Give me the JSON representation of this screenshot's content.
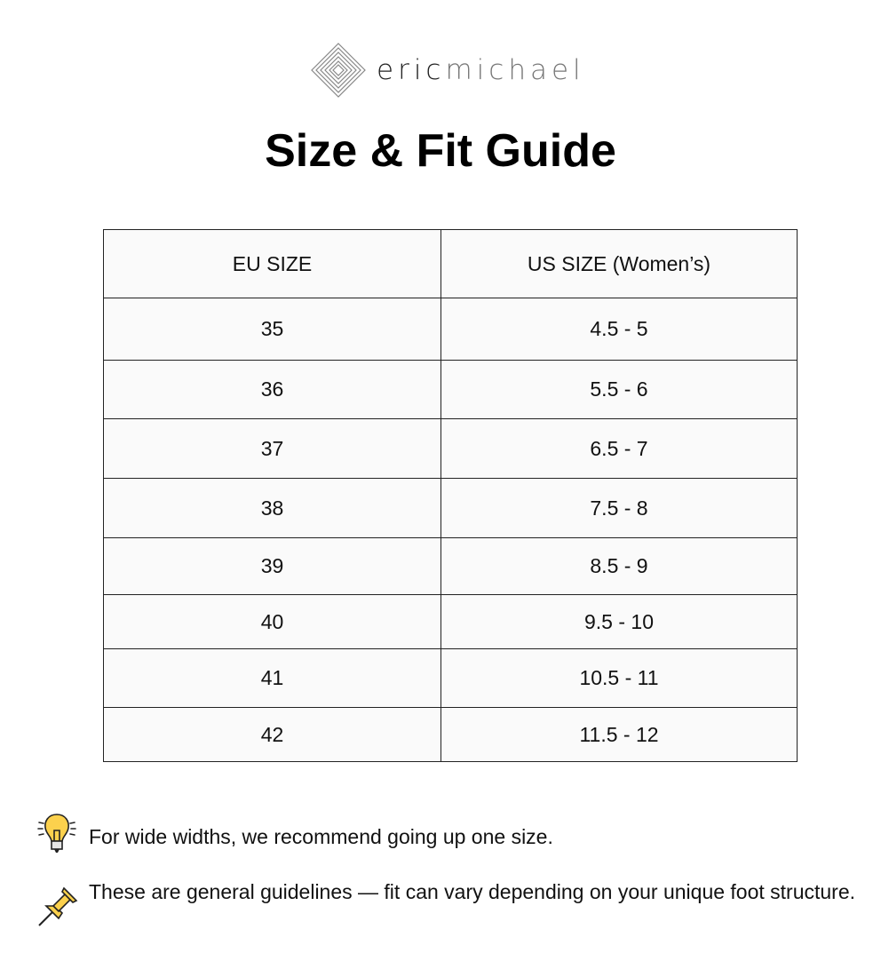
{
  "brand": {
    "logo_part1": "eric",
    "logo_part2": "michael"
  },
  "title": "Size & Fit Guide",
  "table": {
    "headers": [
      "EU SIZE",
      "US SIZE (Women’s)"
    ],
    "rows": [
      [
        "35",
        "4.5 - 5"
      ],
      [
        "36",
        "5.5 - 6"
      ],
      [
        "37",
        "6.5 - 7"
      ],
      [
        "38",
        "7.5 - 8"
      ],
      [
        "39",
        "8.5 - 9"
      ],
      [
        "40",
        "9.5 - 10"
      ],
      [
        "41",
        "10.5 - 11"
      ],
      [
        "42",
        "11.5 - 12"
      ]
    ]
  },
  "notes": [
    {
      "icon": "lightbulb-icon",
      "text": "For wide widths, we recommend going up one size."
    },
    {
      "icon": "pushpin-icon",
      "text": "These are general guidelines — fit can vary depending on your unique foot structure."
    }
  ]
}
